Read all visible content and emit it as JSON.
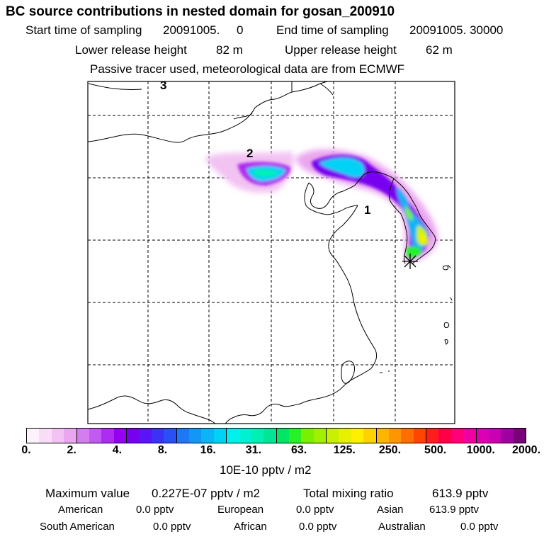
{
  "header": {
    "title": "BC  source contributions in nested domain for gosan_200910",
    "start_label": "Start time of sampling",
    "start_value": "20091005.     0",
    "end_label": "End time of sampling",
    "end_value": "20091005. 30000",
    "lower_label": "Lower release height",
    "lower_value": "82 m",
    "upper_label": "Upper release height",
    "upper_value": "62 m",
    "tracer_note": "Passive tracer used, meteorological data are from ECMWF"
  },
  "map": {
    "labels": [
      "1",
      "2",
      "3"
    ],
    "receptor_marker": "star-marker"
  },
  "colorbar": {
    "ticks": [
      "0.",
      "2.",
      "4.",
      "8.",
      "16.",
      "31.",
      "63.",
      "125.",
      "250.",
      "500.",
      "1000.",
      "2000."
    ],
    "unit": "10E-10 pptv / m2",
    "colors": [
      "#fdf3fd",
      "#f8dcf8",
      "#f2c2f2",
      "#eba6f0",
      "#d47cf0",
      "#c15af0",
      "#ae2cf0",
      "#9600f0",
      "#7800f0",
      "#5a14f5",
      "#3c32f5",
      "#2850f5",
      "#1e78f5",
      "#1496f5",
      "#0ab4f5",
      "#00d2f5",
      "#00f0f0",
      "#00f0d2",
      "#00f0b4",
      "#00e696",
      "#00e664",
      "#28f028",
      "#78f000",
      "#a0f000",
      "#c8f000",
      "#e6f000",
      "#fff000",
      "#ffd200",
      "#ffb400",
      "#ff9600",
      "#ff6e00",
      "#ff4600",
      "#ff1e1e",
      "#ff0046",
      "#ff0078",
      "#f000a0",
      "#dc00b4",
      "#c800b4",
      "#a000a0",
      "#780078"
    ]
  },
  "summary": {
    "max_label": "Maximum value",
    "max_value": "0.227E-07 pptv / m2",
    "total_label": "Total mixing ratio",
    "total_value": "613.9 pptv",
    "regions": [
      {
        "name": "American",
        "value": "0.0 pptv"
      },
      {
        "name": "European",
        "value": "0.0 pptv"
      },
      {
        "name": "Asian",
        "value": "613.9 pptv"
      },
      {
        "name": "South American",
        "value": "0.0 pptv"
      },
      {
        "name": "African",
        "value": "0.0 pptv"
      },
      {
        "name": "Australian",
        "value": "0.0 pptv"
      }
    ]
  }
}
